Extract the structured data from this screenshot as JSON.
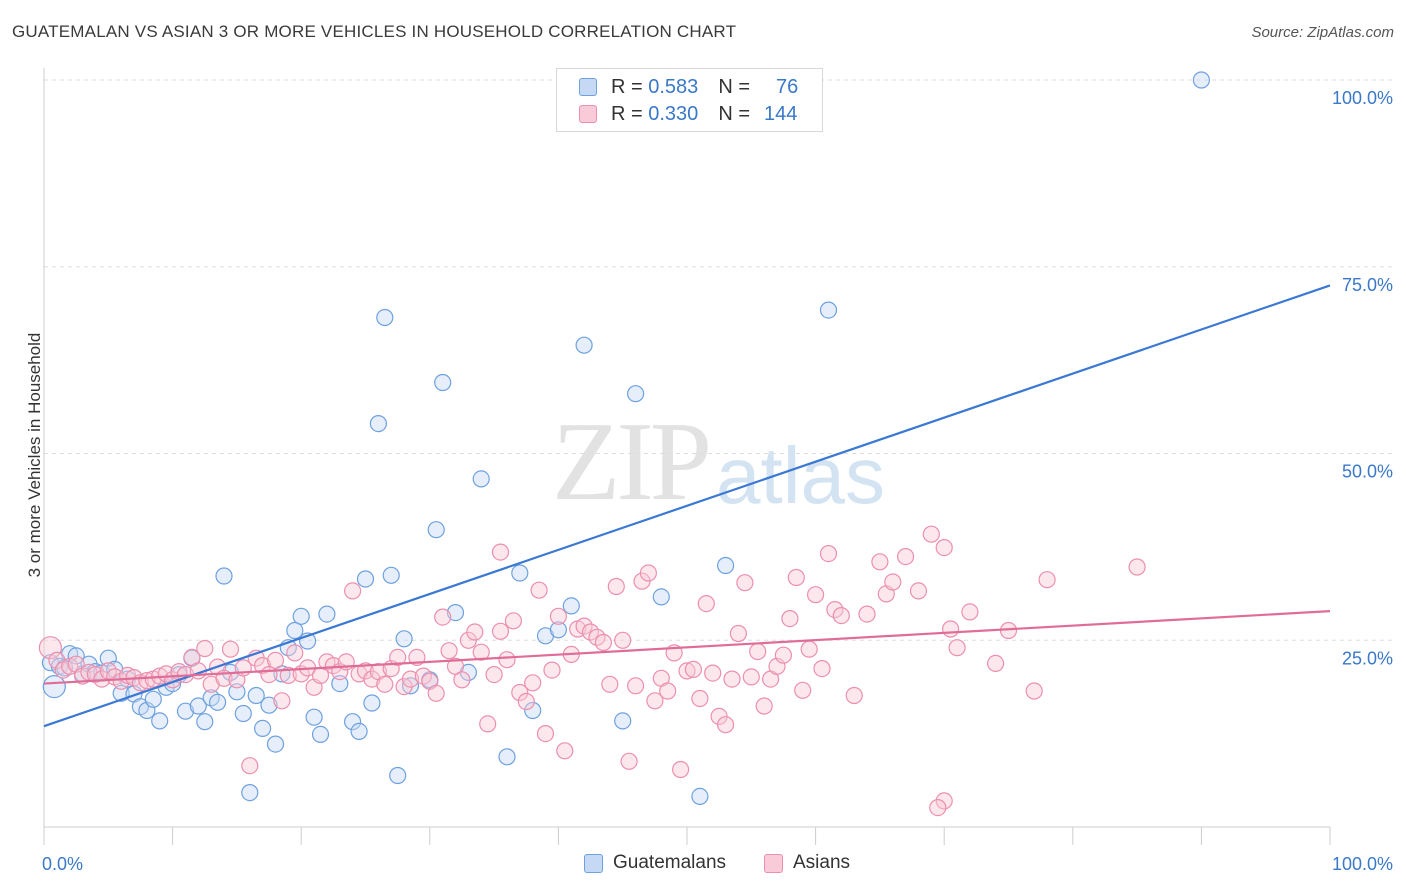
{
  "header": {
    "title": "GUATEMALAN VS ASIAN 3 OR MORE VEHICLES IN HOUSEHOLD CORRELATION CHART",
    "source": "Source: ZipAtlas.com"
  },
  "watermark": {
    "zip": "ZIP",
    "atlas": "atlas"
  },
  "legend": {
    "rows": [
      {
        "r_label": "R =",
        "r_value": "0.583",
        "n_label": "N =",
        "n_value": "76",
        "color": "#6ea1e0",
        "fill": "#c5d9f4"
      },
      {
        "r_label": "R =",
        "r_value": "0.330",
        "n_label": "N =",
        "n_value": "144",
        "color": "#ec8fae",
        "fill": "#f9cad8"
      }
    ]
  },
  "bottom_legend": [
    {
      "label": "Guatemalans",
      "color": "#6ea1e0",
      "fill": "#c5d9f4"
    },
    {
      "label": "Asians",
      "color": "#ec8fae",
      "fill": "#f9cad8"
    }
  ],
  "chart_data": {
    "type": "scatter",
    "title": "GUATEMALAN VS ASIAN 3 OR MORE VEHICLES IN HOUSEHOLD CORRELATION CHART",
    "xlabel": "",
    "ylabel": "3 or more Vehicles in Household",
    "xlim": [
      0,
      100
    ],
    "ylim": [
      0,
      100
    ],
    "x_tick_labels": [
      "0.0%",
      "100.0%"
    ],
    "y_tick_labels": [
      "25.0%",
      "50.0%",
      "75.0%",
      "100.0%"
    ],
    "y_ticks": [
      25,
      50,
      75,
      100
    ],
    "grid": "horizontal dashed",
    "legend_position": "top-center",
    "series": [
      {
        "name": "Guatemalans",
        "color": "#3a78d4",
        "fill": "#c5d9f4",
        "stroke": "#6ea1e0",
        "trend": {
          "x": [
            0,
            100
          ],
          "y": [
            13.5,
            72.5
          ]
        },
        "points": [
          [
            0.5,
            22
          ],
          [
            0.8,
            18.8
          ],
          [
            1.2,
            21.5
          ],
          [
            1.6,
            21.3
          ],
          [
            2,
            23.2
          ],
          [
            2.5,
            22.9
          ],
          [
            3,
            20.5
          ],
          [
            3.5,
            21.8
          ],
          [
            4,
            20.8
          ],
          [
            4.5,
            20.6
          ],
          [
            5,
            22.6
          ],
          [
            5.5,
            21.1
          ],
          [
            6,
            17.9
          ],
          [
            6.5,
            19.8
          ],
          [
            7,
            17.8
          ],
          [
            7.5,
            16.1
          ],
          [
            8,
            15.6
          ],
          [
            8.5,
            17.1
          ],
          [
            9,
            14.2
          ],
          [
            9.5,
            18.7
          ],
          [
            10,
            19.2
          ],
          [
            10.5,
            20.4
          ],
          [
            11,
            15.5
          ],
          [
            11.5,
            22.6
          ],
          [
            12,
            16.2
          ],
          [
            12.5,
            14.1
          ],
          [
            13,
            17.3
          ],
          [
            13.5,
            16.7
          ],
          [
            14,
            33.6
          ],
          [
            14.5,
            20.7
          ],
          [
            15,
            18.1
          ],
          [
            15.5,
            15.2
          ],
          [
            16,
            4.6
          ],
          [
            16.5,
            17.6
          ],
          [
            17,
            13.2
          ],
          [
            17.5,
            16.3
          ],
          [
            18,
            11.1
          ],
          [
            18.5,
            20.5
          ],
          [
            19,
            24
          ],
          [
            19.5,
            26.3
          ],
          [
            20,
            28.2
          ],
          [
            20.5,
            24.9
          ],
          [
            21,
            14.7
          ],
          [
            21.5,
            12.4
          ],
          [
            22,
            28.5
          ],
          [
            23,
            19.2
          ],
          [
            24,
            14.1
          ],
          [
            24.5,
            12.8
          ],
          [
            25,
            33.2
          ],
          [
            25.5,
            16.6
          ],
          [
            26,
            54
          ],
          [
            27,
            33.7
          ],
          [
            27.5,
            6.9
          ],
          [
            28,
            25.2
          ],
          [
            28.5,
            18.9
          ],
          [
            30,
            19.7
          ],
          [
            30.5,
            39.8
          ],
          [
            31,
            59.5
          ],
          [
            32,
            28.7
          ],
          [
            33,
            20.7
          ],
          [
            34,
            46.6
          ],
          [
            36,
            9.4
          ],
          [
            37,
            34
          ],
          [
            38,
            15.6
          ],
          [
            39,
            25.6
          ],
          [
            40,
            26.4
          ],
          [
            41,
            29.6
          ],
          [
            42,
            64.5
          ],
          [
            45,
            14.2
          ],
          [
            46,
            58
          ],
          [
            48,
            30.8
          ],
          [
            51,
            4.1
          ],
          [
            53,
            35
          ],
          [
            61,
            69.2
          ],
          [
            26.5,
            68.2
          ],
          [
            90,
            100
          ]
        ]
      },
      {
        "name": "Asians",
        "color": "#e06d97",
        "fill": "#f9cad8",
        "stroke": "#ec8fae",
        "trend": {
          "x": [
            0,
            100
          ],
          "y": [
            19.2,
            28.9
          ]
        },
        "points": [
          [
            0.5,
            24
          ],
          [
            1,
            22.3
          ],
          [
            1.5,
            21
          ],
          [
            2,
            21.5
          ],
          [
            2.5,
            21.8
          ],
          [
            3,
            20.2
          ],
          [
            3.5,
            20.7
          ],
          [
            4,
            20.4
          ],
          [
            4.5,
            19.8
          ],
          [
            5,
            20.9
          ],
          [
            5.5,
            20.1
          ],
          [
            6,
            19.5
          ],
          [
            6.5,
            20.3
          ],
          [
            7,
            20
          ],
          [
            7.5,
            19.3
          ],
          [
            8,
            19.6
          ],
          [
            8.5,
            19.8
          ],
          [
            9,
            20.2
          ],
          [
            9.5,
            20.5
          ],
          [
            10,
            19.7
          ],
          [
            10.5,
            20.8
          ],
          [
            11,
            20.4
          ],
          [
            11.5,
            22.7
          ],
          [
            12,
            20.9
          ],
          [
            12.5,
            23.9
          ],
          [
            13,
            19.1
          ],
          [
            13.5,
            21.4
          ],
          [
            14,
            19.9
          ],
          [
            14.5,
            23.8
          ],
          [
            15,
            19.7
          ],
          [
            15.5,
            21.3
          ],
          [
            16,
            8.2
          ],
          [
            16.5,
            22.6
          ],
          [
            17,
            21.6
          ],
          [
            17.5,
            20.4
          ],
          [
            18,
            22.3
          ],
          [
            18.5,
            16.9
          ],
          [
            19,
            20.3
          ],
          [
            19.5,
            23.3
          ],
          [
            20,
            20.5
          ],
          [
            20.5,
            21.3
          ],
          [
            21,
            18.7
          ],
          [
            21.5,
            20.3
          ],
          [
            22,
            22.1
          ],
          [
            22.5,
            21.6
          ],
          [
            23,
            20.8
          ],
          [
            23.5,
            22.1
          ],
          [
            24,
            31.6
          ],
          [
            24.5,
            20.5
          ],
          [
            25,
            20.9
          ],
          [
            25.5,
            19.8
          ],
          [
            26,
            20.8
          ],
          [
            26.5,
            19.1
          ],
          [
            27,
            21.2
          ],
          [
            27.5,
            22.7
          ],
          [
            28,
            18.8
          ],
          [
            28.5,
            19.8
          ],
          [
            29,
            22.7
          ],
          [
            29.5,
            20.2
          ],
          [
            30,
            19.5
          ],
          [
            30.5,
            17.9
          ],
          [
            31,
            28.1
          ],
          [
            31.5,
            23.6
          ],
          [
            32,
            21.5
          ],
          [
            32.5,
            19.7
          ],
          [
            33,
            25
          ],
          [
            33.5,
            26.1
          ],
          [
            34,
            23.4
          ],
          [
            34.5,
            13.8
          ],
          [
            35,
            20.4
          ],
          [
            35.5,
            26.2
          ],
          [
            36,
            22.4
          ],
          [
            36.5,
            27.6
          ],
          [
            37,
            18
          ],
          [
            37.5,
            16.8
          ],
          [
            38,
            19.3
          ],
          [
            38.5,
            31.7
          ],
          [
            39,
            12.5
          ],
          [
            39.5,
            21
          ],
          [
            40,
            28.2
          ],
          [
            40.5,
            10.2
          ],
          [
            41,
            23.1
          ],
          [
            41.5,
            26.5
          ],
          [
            42,
            26.9
          ],
          [
            42.5,
            26.1
          ],
          [
            43,
            25.4
          ],
          [
            43.5,
            24.7
          ],
          [
            44,
            19.1
          ],
          [
            44.5,
            32.2
          ],
          [
            45,
            25
          ],
          [
            45.5,
            8.8
          ],
          [
            46,
            18.9
          ],
          [
            46.5,
            32.9
          ],
          [
            47,
            34
          ],
          [
            47.5,
            16.9
          ],
          [
            48,
            19.9
          ],
          [
            48.5,
            18.2
          ],
          [
            49,
            23.3
          ],
          [
            49.5,
            7.7
          ],
          [
            50,
            20.9
          ],
          [
            50.5,
            21.1
          ],
          [
            51,
            17.2
          ],
          [
            51.5,
            29.9
          ],
          [
            52,
            20.6
          ],
          [
            52.5,
            14.8
          ],
          [
            53,
            13.7
          ],
          [
            53.5,
            19.8
          ],
          [
            54,
            25.9
          ],
          [
            54.5,
            32.7
          ],
          [
            55,
            20.1
          ],
          [
            55.5,
            23.5
          ],
          [
            56,
            16.2
          ],
          [
            56.5,
            19.8
          ],
          [
            57,
            21.5
          ],
          [
            57.5,
            23
          ],
          [
            58,
            27.9
          ],
          [
            58.5,
            33.4
          ],
          [
            59,
            18.3
          ],
          [
            59.5,
            23.8
          ],
          [
            60,
            31.1
          ],
          [
            60.5,
            21.2
          ],
          [
            61,
            36.6
          ],
          [
            61.5,
            29.1
          ],
          [
            62,
            28.3
          ],
          [
            63,
            17.6
          ],
          [
            64,
            28.5
          ],
          [
            65,
            35.5
          ],
          [
            65.5,
            31.2
          ],
          [
            66,
            32.8
          ],
          [
            67,
            36.2
          ],
          [
            68,
            31.6
          ],
          [
            69,
            39.2
          ],
          [
            70,
            37.4
          ],
          [
            70.5,
            26.5
          ],
          [
            71,
            24
          ],
          [
            72,
            28.8
          ],
          [
            74,
            21.9
          ],
          [
            75,
            26.3
          ],
          [
            77,
            18.2
          ],
          [
            78,
            33.1
          ],
          [
            85,
            34.8
          ],
          [
            35.5,
            36.8
          ],
          [
            70,
            3.5
          ],
          [
            69.5,
            2.6
          ]
        ]
      }
    ]
  }
}
